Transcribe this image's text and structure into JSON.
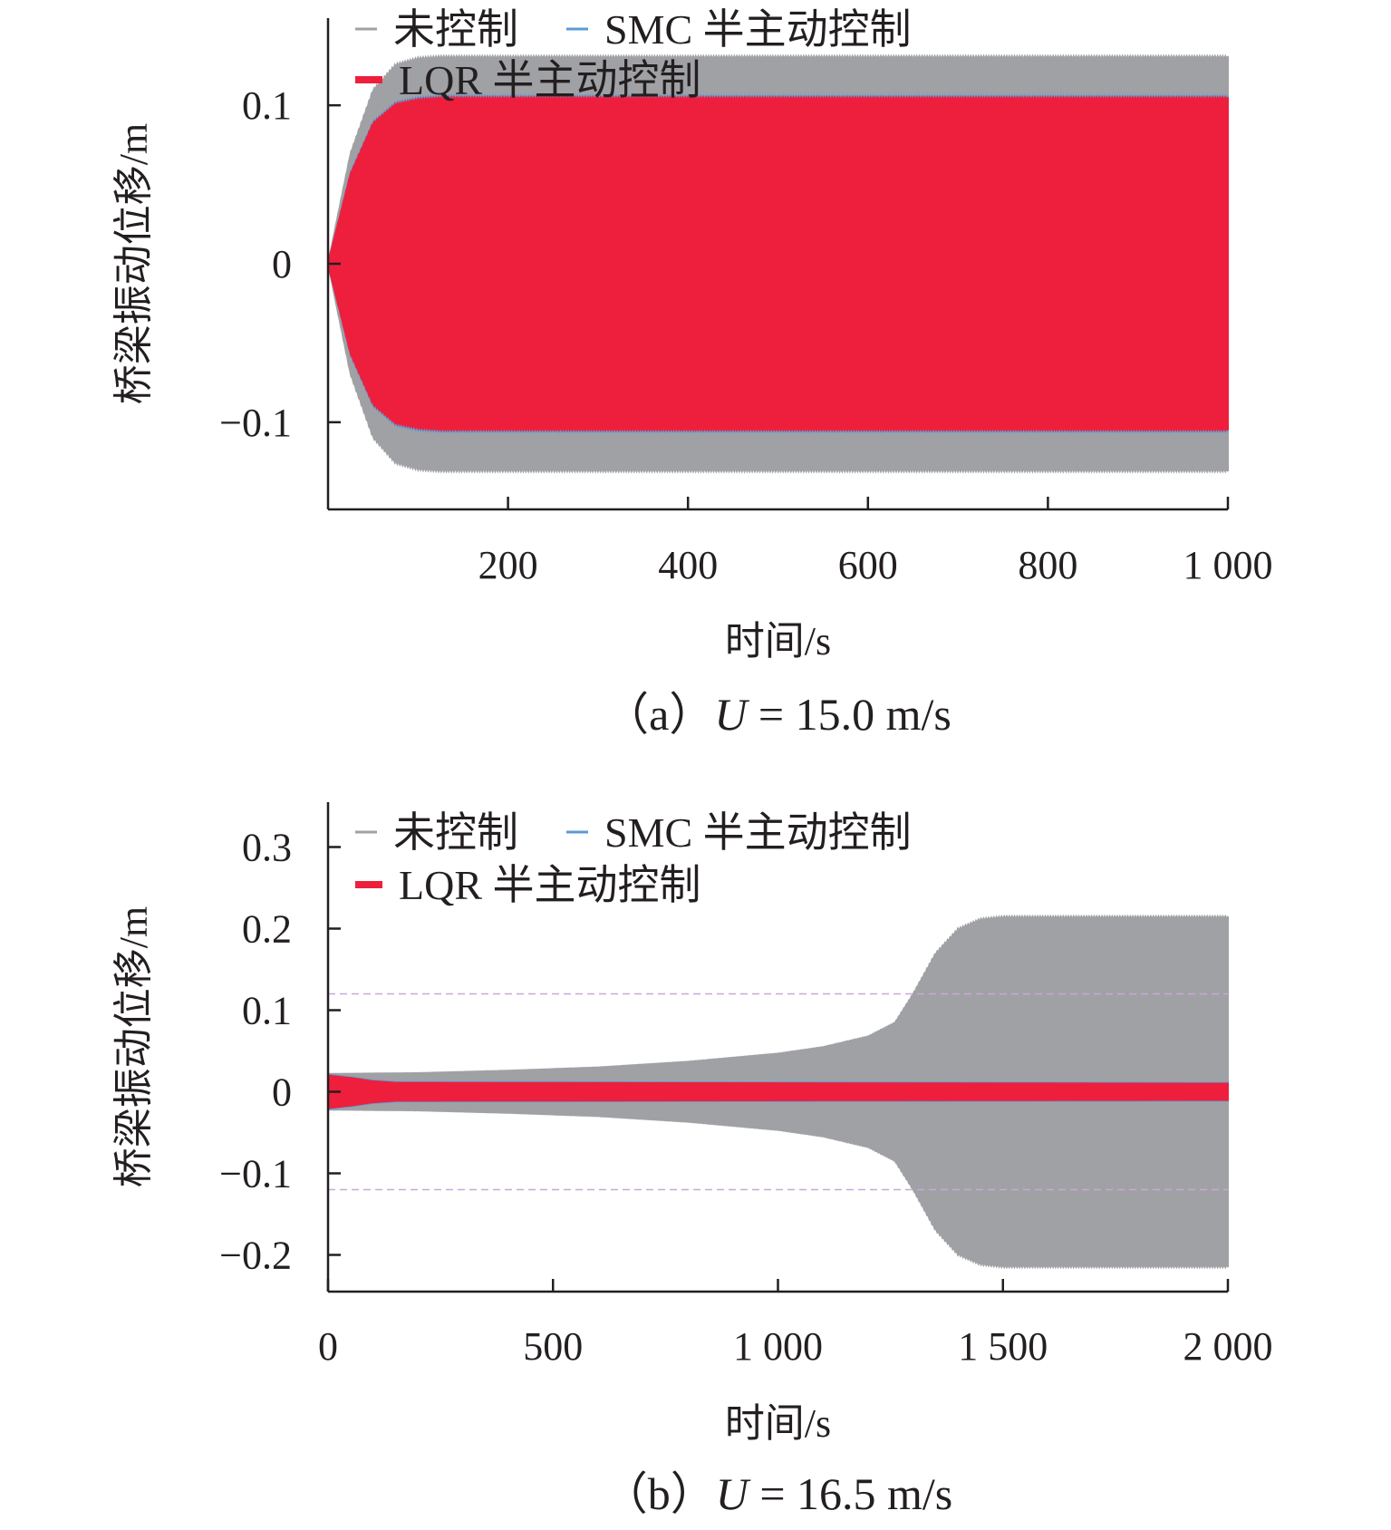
{
  "chart_data": [
    {
      "id": "a",
      "type": "line",
      "caption": {
        "prefix": "（a）",
        "var": "U",
        "rest": " = 15.0 m/s"
      },
      "xlabel": "时间/s",
      "ylabel": "桥梁振动位移/m",
      "xlim": [
        0,
        1000
      ],
      "ylim": [
        -0.155,
        0.155
      ],
      "xticks": [
        200,
        400,
        600,
        800,
        1000
      ],
      "xtick_labels": [
        "200",
        "400",
        "600",
        "800",
        "1 000"
      ],
      "yticks": [
        -0.1,
        0,
        0.1
      ],
      "ytick_labels": [
        "−0.1",
        "0",
        "0.1"
      ],
      "grid": false,
      "legend": {
        "placement": "top-left",
        "rows": [
          [
            "未控制",
            "SMC 半主动控制"
          ],
          [
            "LQR 半主动控制"
          ]
        ]
      },
      "reference_lines": [],
      "series": [
        {
          "name": "未控制",
          "color": "#a0a1a5",
          "envelope_t": [
            0,
            25,
            50,
            75,
            100,
            125,
            150,
            1000
          ],
          "envelope_amp": [
            0,
            0.07,
            0.11,
            0.126,
            0.13,
            0.131,
            0.131,
            0.131
          ]
        },
        {
          "name": "SMC 半主动控制",
          "color": "#5b9bd5",
          "envelope_t": [
            0,
            25,
            50,
            75,
            100,
            125,
            150,
            1000
          ],
          "envelope_amp": [
            0,
            0.058,
            0.09,
            0.102,
            0.105,
            0.106,
            0.106,
            0.106
          ]
        },
        {
          "name": "LQR 半主动控制",
          "color": "#ee1f3c",
          "envelope_t": [
            0,
            25,
            50,
            75,
            100,
            125,
            150,
            1000
          ],
          "envelope_amp": [
            0,
            0.057,
            0.089,
            0.101,
            0.104,
            0.105,
            0.105,
            0.105
          ]
        }
      ]
    },
    {
      "id": "b",
      "type": "line",
      "caption": {
        "prefix": "（b）",
        "var": "U",
        "rest": " = 16.5 m/s"
      },
      "xlabel": "时间/s",
      "ylabel": "桥梁振动位移/m",
      "xlim": [
        0,
        2000
      ],
      "ylim": [
        -0.245,
        0.355
      ],
      "xticks": [
        0,
        500,
        1000,
        1500,
        2000
      ],
      "xtick_labels": [
        "0",
        "500",
        "1 000",
        "1 500",
        "2 000"
      ],
      "yticks": [
        -0.2,
        -0.1,
        0,
        0.1,
        0.2,
        0.3
      ],
      "ytick_labels": [
        "−0.2",
        "−0.1",
        "0",
        "0.1",
        "0.2",
        "0.3"
      ],
      "grid": false,
      "legend": {
        "placement": "top-left",
        "rows": [
          [
            "未控制",
            "SMC 半主动控制"
          ],
          [
            "LQR 半主动控制"
          ]
        ]
      },
      "reference_lines": [
        {
          "y": 0.12,
          "color": "#c9a8d6"
        },
        {
          "y": -0.12,
          "color": "#c9a8d6"
        }
      ],
      "series": [
        {
          "name": "未控制",
          "color": "#a0a1a5",
          "envelope_t": [
            0,
            200,
            400,
            600,
            800,
            1000,
            1100,
            1200,
            1260,
            1300,
            1350,
            1400,
            1450,
            1500,
            2000
          ],
          "envelope_amp": [
            0.022,
            0.023,
            0.026,
            0.03,
            0.037,
            0.047,
            0.055,
            0.068,
            0.085,
            0.12,
            0.17,
            0.2,
            0.212,
            0.215,
            0.215
          ]
        },
        {
          "name": "SMC 半主动控制",
          "color": "#5b9bd5",
          "envelope_t": [
            0,
            50,
            100,
            150,
            2000
          ],
          "envelope_amp": [
            0.021,
            0.018,
            0.014,
            0.012,
            0.011
          ]
        },
        {
          "name": "LQR 半主动控制",
          "color": "#ee1f3c",
          "envelope_t": [
            0,
            50,
            100,
            150,
            2000
          ],
          "envelope_amp": [
            0.02,
            0.017,
            0.013,
            0.011,
            0.01
          ]
        }
      ]
    }
  ]
}
